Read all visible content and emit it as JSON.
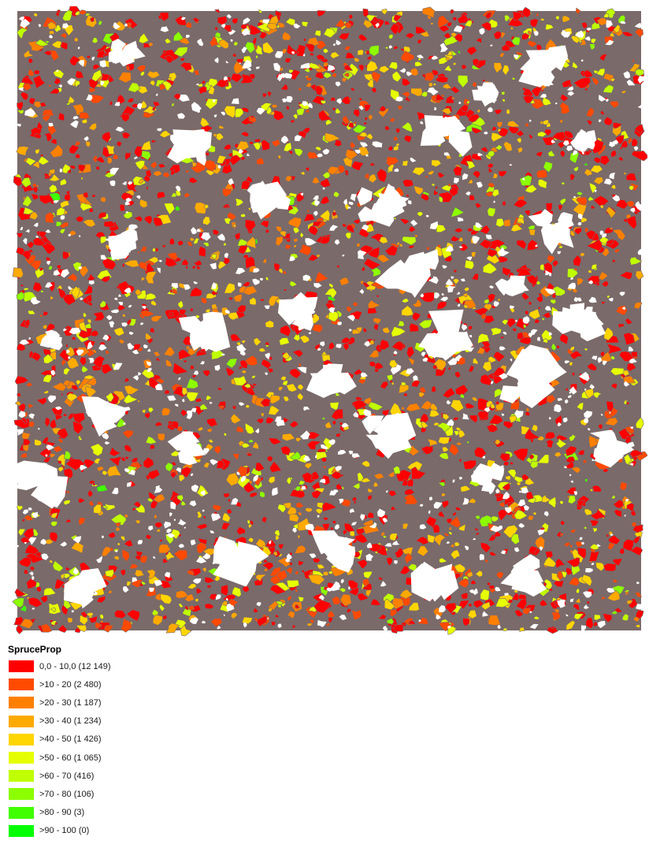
{
  "map": {
    "layer_field": "SpruceProp",
    "outline_color": "#7a6a6a",
    "background_color": "#ffffff"
  },
  "legend": {
    "title": "SpruceProp",
    "classes": [
      {
        "label": "0,0 - 10,0",
        "count": "12 149",
        "display": "0,0 - 10,0 (12 149)",
        "color": "#ff0000",
        "weight": 12149
      },
      {
        "label": ">10 - 20",
        "count": "2 480",
        "display": ">10 - 20 (2 480)",
        "color": "#ff4a00",
        "weight": 2480
      },
      {
        "label": ">20 - 30",
        "count": "1 187",
        "display": ">20 - 30 (1 187)",
        "color": "#ff8000",
        "weight": 1187
      },
      {
        "label": ">30 - 40",
        "count": "1 234",
        "display": ">30 - 40 (1 234)",
        "color": "#ffaa00",
        "weight": 1234
      },
      {
        "label": ">40 - 50",
        "count": "1 426",
        "display": ">40 - 50 (1 426)",
        "color": "#ffd500",
        "weight": 1426
      },
      {
        "label": ">50 - 60",
        "count": "1 065",
        "display": ">50 - 60 (1 065)",
        "color": "#e6ff00",
        "weight": 1065
      },
      {
        "label": ">60 - 70",
        "count": "416",
        "display": ">60 - 70 (416)",
        "color": "#bfff00",
        "weight": 416
      },
      {
        "label": ">70 - 80",
        "count": "106",
        "display": ">70 - 80 (106)",
        "color": "#8cff00",
        "weight": 106
      },
      {
        "label": ">80 - 90",
        "count": "3",
        "display": ">80 - 90 (3)",
        "color": "#40ff00",
        "weight": 3
      },
      {
        "label": ">90 - 100",
        "count": "0",
        "display": ">90 - 100 (0)",
        "color": "#00ff00",
        "weight": 0
      }
    ]
  }
}
